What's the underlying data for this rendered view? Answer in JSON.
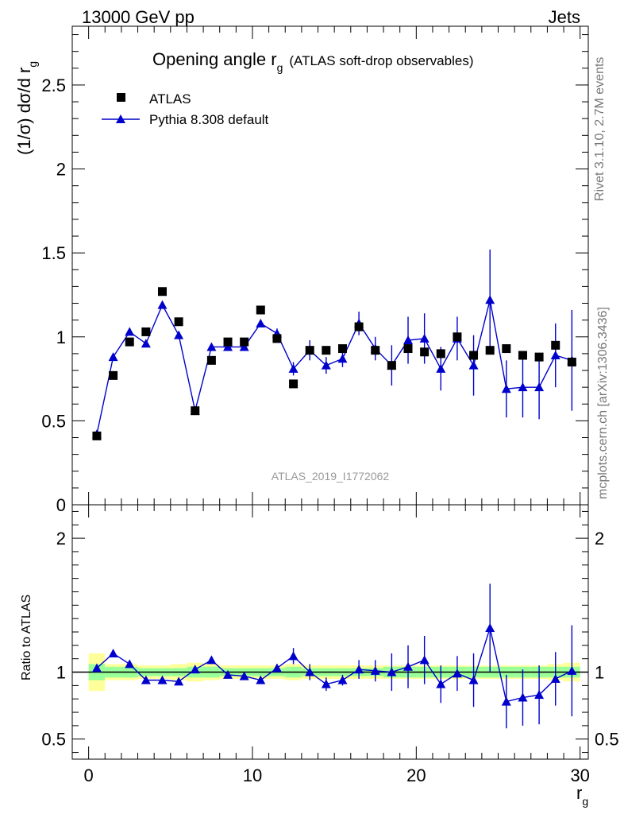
{
  "header": {
    "left": "13000 GeV pp",
    "right": "Jets"
  },
  "side_text": {
    "right_top": "Rivet 3.1.10,  2.7M events",
    "right_bottom": "mcplots.cern.ch [arXiv:1306.3436]"
  },
  "chart_data": {
    "type": "scatter",
    "title": "Opening angle r",
    "title_sub": "g",
    "title_extra": "(ATLAS soft-drop observables)",
    "watermark": "ATLAS_2019_I1772062",
    "xlabel": "r",
    "xlabel_sub": "g",
    "ylabel": "(1/σ) dσ/d r",
    "ylabel_sub": "g",
    "xlim": [
      -1,
      30.5
    ],
    "ylim": [
      0,
      2.85
    ],
    "x_ticks": [
      0,
      10,
      20,
      30
    ],
    "y_ticks": [
      0.5,
      1,
      1.5,
      2,
      2.5
    ],
    "y_tick_labels": [
      "0.5",
      "1",
      "1.5",
      "2",
      "2.5"
    ],
    "bottom_cut_label": "0",
    "legend": {
      "position": "top-left",
      "entries": [
        {
          "label": "ATLAS",
          "marker": "square",
          "color": "#000000"
        },
        {
          "label": "Pythia 8.308 default",
          "marker": "triangle",
          "color": "#0000cc"
        }
      ]
    },
    "x": [
      0.5,
      1.5,
      2.5,
      3.5,
      4.5,
      5.5,
      6.5,
      7.5,
      8.5,
      9.5,
      10.5,
      11.5,
      12.5,
      13.5,
      14.5,
      15.5,
      16.5,
      17.5,
      18.5,
      19.5,
      20.5,
      21.5,
      22.5,
      23.5,
      24.5,
      25.5,
      26.5,
      27.5,
      28.5,
      29.5
    ],
    "series": [
      {
        "name": "ATLAS",
        "color": "#000000",
        "values": [
          0.41,
          0.77,
          0.97,
          1.03,
          1.27,
          1.09,
          0.56,
          0.86,
          0.97,
          0.97,
          1.16,
          0.99,
          0.72,
          0.92,
          0.92,
          0.93,
          1.06,
          0.92,
          0.83,
          0.93,
          0.91,
          0.9,
          1.0,
          0.89,
          0.92,
          0.93,
          0.89,
          0.88,
          0.95,
          0.85
        ]
      },
      {
        "name": "Pythia 8.308 default",
        "color": "#0000cc",
        "values": [
          0.42,
          0.88,
          1.03,
          0.96,
          1.19,
          1.01,
          0.56,
          0.94,
          0.94,
          0.94,
          1.08,
          1.02,
          0.81,
          0.92,
          0.83,
          0.87,
          1.08,
          0.93,
          0.83,
          0.98,
          0.99,
          0.81,
          0.99,
          0.83,
          1.22,
          0.69,
          0.7,
          0.7,
          0.89,
          0.86
        ],
        "errors": [
          0.02,
          0.02,
          0.02,
          0.02,
          0.02,
          0.02,
          0.02,
          0.02,
          0.02,
          0.02,
          0.02,
          0.03,
          0.04,
          0.06,
          0.05,
          0.05,
          0.07,
          0.07,
          0.12,
          0.14,
          0.15,
          0.13,
          0.13,
          0.18,
          0.3,
          0.17,
          0.18,
          0.19,
          0.19,
          0.3
        ]
      }
    ],
    "ratio": {
      "ylabel": "Ratio to ATLAS",
      "ylim": [
        0.35,
        2.25
      ],
      "y_ticks": [
        0.5,
        1,
        2
      ],
      "y_tick_labels": [
        "0.5",
        "1",
        "2"
      ],
      "values": [
        1.03,
        1.14,
        1.06,
        0.94,
        0.94,
        0.93,
        1.02,
        1.09,
        0.98,
        0.97,
        0.94,
        1.03,
        1.12,
        1.0,
        0.91,
        0.94,
        1.02,
        1.01,
        1.0,
        1.04,
        1.09,
        0.91,
        0.99,
        0.94,
        1.33,
        0.78,
        0.81,
        0.83,
        0.95,
        1.01
      ],
      "errors": [
        0.02,
        0.02,
        0.02,
        0.02,
        0.02,
        0.02,
        0.02,
        0.02,
        0.02,
        0.02,
        0.02,
        0.03,
        0.06,
        0.06,
        0.05,
        0.04,
        0.07,
        0.08,
        0.14,
        0.16,
        0.18,
        0.14,
        0.13,
        0.2,
        0.33,
        0.2,
        0.21,
        0.22,
        0.2,
        0.34
      ],
      "band_inner": [
        0.06,
        0.04,
        0.04,
        0.03,
        0.03,
        0.03,
        0.04,
        0.04,
        0.03,
        0.03,
        0.03,
        0.03,
        0.04,
        0.03,
        0.03,
        0.03,
        0.03,
        0.03,
        0.04,
        0.04,
        0.04,
        0.04,
        0.04,
        0.04,
        0.04,
        0.04,
        0.04,
        0.04,
        0.04,
        0.04
      ],
      "band_outer": [
        0.14,
        0.06,
        0.06,
        0.05,
        0.05,
        0.06,
        0.07,
        0.06,
        0.05,
        0.05,
        0.05,
        0.05,
        0.06,
        0.05,
        0.05,
        0.05,
        0.05,
        0.05,
        0.05,
        0.05,
        0.05,
        0.05,
        0.05,
        0.05,
        0.05,
        0.05,
        0.05,
        0.05,
        0.06,
        0.07
      ]
    }
  }
}
